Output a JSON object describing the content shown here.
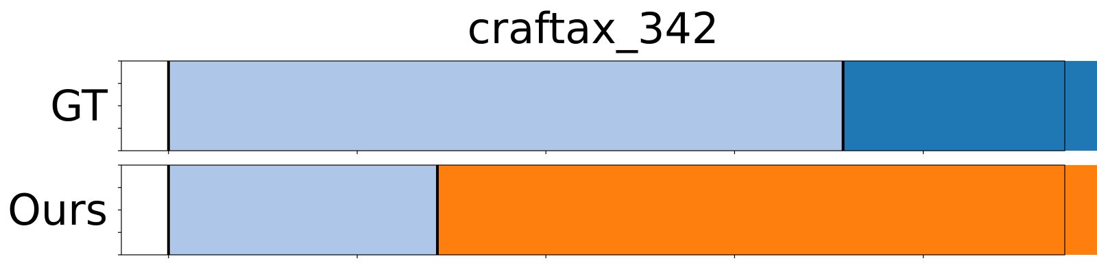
{
  "chart_data": {
    "type": "segmentation-timeline",
    "title": "craftax_342",
    "xlim": [
      0,
      1
    ],
    "rows": [
      {
        "label": "GT",
        "segments": [
          {
            "start": 0.05,
            "end": 0.765,
            "color": "#aec7e8"
          },
          {
            "start": 0.765,
            "end": 1.05,
            "color": "#1f77b4"
          }
        ],
        "boundaries": [
          0.05,
          0.765,
          1.05
        ]
      },
      {
        "label": "Ours",
        "segments": [
          {
            "start": 0.05,
            "end": 0.335,
            "color": "#aec7e8"
          },
          {
            "start": 0.335,
            "end": 1.05,
            "color": "#ff7f0e"
          }
        ],
        "boundaries": [
          0.05,
          0.335,
          1.05
        ]
      }
    ],
    "x_ticks": [
      0.05,
      0.25,
      0.45,
      0.65,
      0.85,
      1.05
    ],
    "x_tick_labels_shown": false,
    "y_tick_labels_shown": false
  }
}
